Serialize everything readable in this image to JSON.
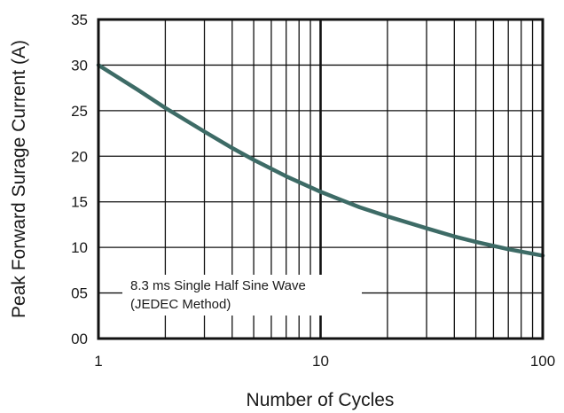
{
  "chart_data": {
    "type": "line",
    "xlabel": "Number of Cycles",
    "ylabel": "Peak Forward Surage Current (A)",
    "x_scale": "log",
    "xlim": [
      1,
      100
    ],
    "ylim": [
      0,
      35
    ],
    "x_ticks": [
      {
        "value": 1,
        "label": "1"
      },
      {
        "value": 10,
        "label": "10"
      },
      {
        "value": 100,
        "label": "100"
      }
    ],
    "y_ticks": [
      {
        "value": 0,
        "label": "00"
      },
      {
        "value": 5,
        "label": "05"
      },
      {
        "value": 10,
        "label": "10"
      },
      {
        "value": 15,
        "label": "15"
      },
      {
        "value": 20,
        "label": "20"
      },
      {
        "value": 25,
        "label": "25"
      },
      {
        "value": 30,
        "label": "30"
      },
      {
        "value": 35,
        "label": "35"
      }
    ],
    "grid": true,
    "annotation": [
      "8.3 ms Single Half Sine Wave",
      "(JEDEC Method)"
    ],
    "line_color": "#3d6b66",
    "series": [
      {
        "x": [
          1,
          1.5,
          2,
          3,
          4,
          5,
          7,
          10,
          15,
          20,
          30,
          40,
          50,
          70,
          100
        ],
        "y": [
          30,
          27.3,
          25.3,
          22.7,
          20.9,
          19.6,
          17.8,
          16.1,
          14.4,
          13.4,
          12.1,
          11.2,
          10.6,
          9.8,
          9.1
        ]
      }
    ]
  }
}
